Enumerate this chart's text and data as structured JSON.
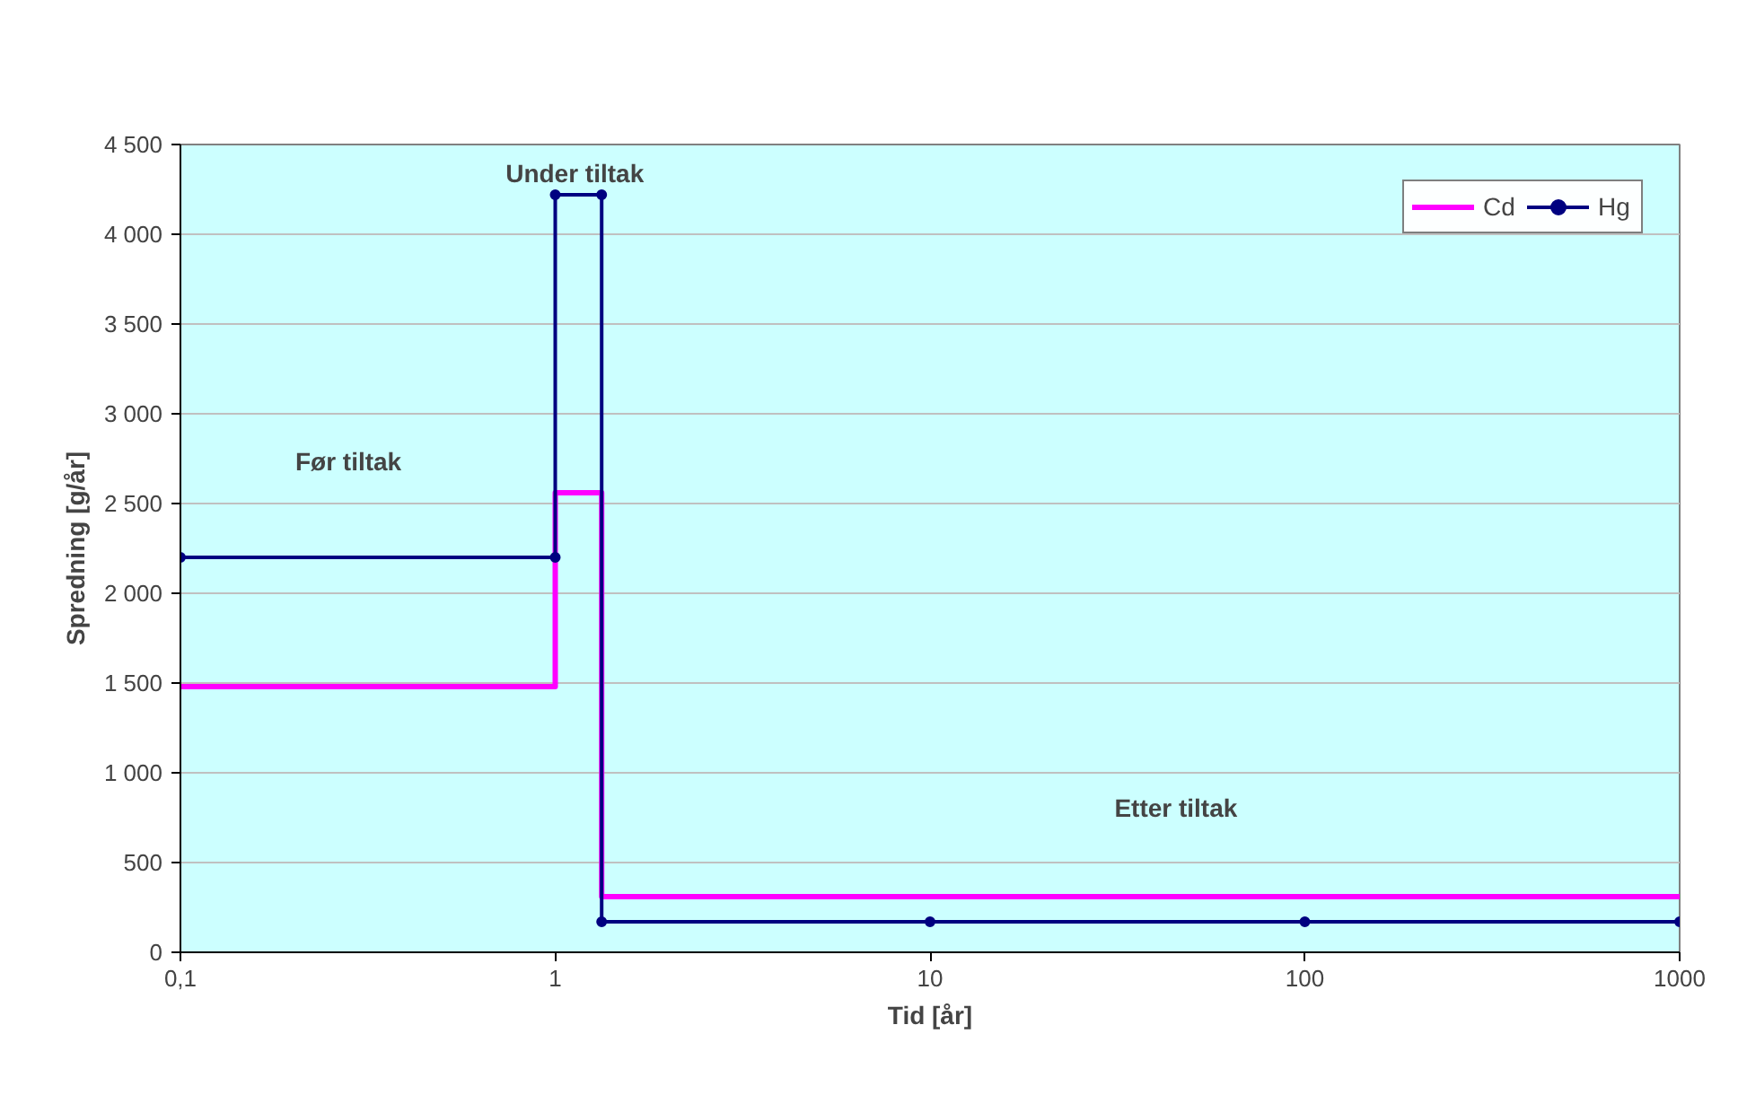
{
  "chart_data": {
    "type": "line",
    "xlabel": "Tid [år]",
    "ylabel": "Spredning [g/år]",
    "log": "x",
    "xlim": [
      0.1,
      1000
    ],
    "xticks": [
      {
        "value": 0.1,
        "label": "0,1"
      },
      1,
      10,
      100,
      1000
    ],
    "ylim": [
      0,
      4500
    ],
    "yticks": [
      0,
      500,
      {
        "value": 1000,
        "label": "1 000"
      },
      {
        "value": 1500,
        "label": "1 500"
      },
      {
        "value": 2000,
        "label": "2 000"
      },
      {
        "value": 2500,
        "label": "2 500"
      },
      {
        "value": 3000,
        "label": "3 000"
      },
      {
        "value": 3500,
        "label": "3 500"
      },
      {
        "value": 4000,
        "label": "4 000"
      },
      {
        "value": 4500,
        "label": "4 500"
      }
    ],
    "grid": "y",
    "legend": "top right",
    "series": [
      {
        "name": "Cd",
        "color": "#ff00ff",
        "marker": "none",
        "x": [
          0.1,
          1,
          1,
          1.33,
          1.33,
          1000
        ],
        "values": [
          1480,
          1480,
          2560,
          2560,
          310,
          310
        ]
      },
      {
        "name": "Hg",
        "color": "#000080",
        "marker": "circle",
        "x": [
          0.1,
          1,
          1,
          1.33,
          1.33,
          10,
          100,
          1000
        ],
        "values": [
          2200,
          2200,
          4220,
          4220,
          170,
          170,
          170,
          170
        ]
      }
    ],
    "annotations": [
      "Før tiltak",
      "Under tiltak",
      "Etter tiltak"
    ]
  }
}
